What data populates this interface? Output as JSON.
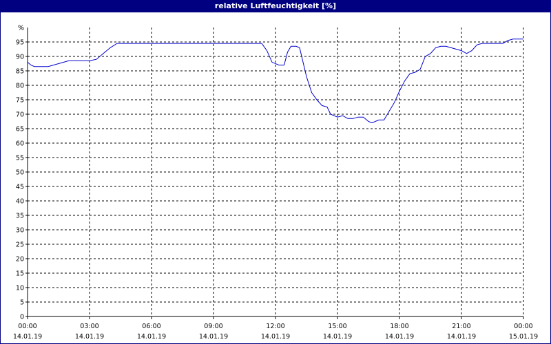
{
  "window": {
    "title": "relative Luftfeuchtigkeit [%]"
  },
  "chart_data": {
    "type": "line",
    "title": "relative Luftfeuchtigkeit [%]",
    "ylabel": "%",
    "ylim": [
      0,
      100
    ],
    "yticks": [
      0,
      5,
      10,
      15,
      20,
      25,
      30,
      35,
      40,
      45,
      50,
      55,
      60,
      65,
      70,
      75,
      80,
      85,
      90,
      95
    ],
    "xlim": [
      "14.01.19 00:00",
      "15.01.19 00:00"
    ],
    "xticks": [
      {
        "time": "00:00",
        "date": "14.01.19"
      },
      {
        "time": "03:00",
        "date": "14.01.19"
      },
      {
        "time": "06:00",
        "date": "14.01.19"
      },
      {
        "time": "09:00",
        "date": "14.01.19"
      },
      {
        "time": "12:00",
        "date": "14.01.19"
      },
      {
        "time": "15:00",
        "date": "14.01.19"
      },
      {
        "time": "18:00",
        "date": "14.01.19"
      },
      {
        "time": "21:00",
        "date": "14.01.19"
      },
      {
        "time": "00:00",
        "date": "15.01.19"
      }
    ],
    "grid": true,
    "line_color": "#0000cc",
    "series": [
      {
        "name": "",
        "points": [
          [
            "14.01.19 00:00",
            88
          ],
          [
            "14.01.19 00:10",
            87
          ],
          [
            "14.01.19 00:20",
            86.5
          ],
          [
            "14.01.19 00:40",
            86.5
          ],
          [
            "14.01.19 01:00",
            86.5
          ],
          [
            "14.01.19 01:15",
            87
          ],
          [
            "14.01.19 01:30",
            87.5
          ],
          [
            "14.01.19 01:45",
            88
          ],
          [
            "14.01.19 02:00",
            88.5
          ],
          [
            "14.01.19 02:30",
            88.5
          ],
          [
            "14.01.19 03:00",
            88.5
          ],
          [
            "14.01.19 03:20",
            89
          ],
          [
            "14.01.19 03:40",
            91
          ],
          [
            "14.01.19 04:00",
            93
          ],
          [
            "14.01.19 04:20",
            94.5
          ],
          [
            "14.01.19 05:00",
            94.5
          ],
          [
            "14.01.19 06:00",
            94.5
          ],
          [
            "14.01.19 08:00",
            94.5
          ],
          [
            "14.01.19 10:00",
            94.5
          ],
          [
            "14.01.19 11:20",
            94.5
          ],
          [
            "14.01.19 11:35",
            92
          ],
          [
            "14.01.19 11:50",
            88
          ],
          [
            "14.01.19 12:10",
            87
          ],
          [
            "14.01.19 12:25",
            87
          ],
          [
            "14.01.19 12:35",
            91.5
          ],
          [
            "14.01.19 12:45",
            93.5
          ],
          [
            "14.01.19 13:00",
            93.5
          ],
          [
            "14.01.19 13:10",
            93
          ],
          [
            "14.01.19 13:20",
            88
          ],
          [
            "14.01.19 13:30",
            83
          ],
          [
            "14.01.19 13:45",
            77.5
          ],
          [
            "14.01.19 14:00",
            75
          ],
          [
            "14.01.19 14:15",
            73
          ],
          [
            "14.01.19 14:30",
            72.5
          ],
          [
            "14.01.19 14:40",
            70
          ],
          [
            "14.01.19 15:00",
            69
          ],
          [
            "14.01.19 15:15",
            69.5
          ],
          [
            "14.01.19 15:30",
            68.5
          ],
          [
            "14.01.19 15:45",
            68.5
          ],
          [
            "14.01.19 16:00",
            69
          ],
          [
            "14.01.19 16:15",
            69
          ],
          [
            "14.01.19 16:30",
            67.5
          ],
          [
            "14.01.19 16:40",
            67
          ],
          [
            "14.01.19 17:00",
            68
          ],
          [
            "14.01.19 17:15",
            68
          ],
          [
            "14.01.19 17:30",
            71
          ],
          [
            "14.01.19 17:45",
            74
          ],
          [
            "14.01.19 18:00",
            78
          ],
          [
            "14.01.19 18:15",
            81.5
          ],
          [
            "14.01.19 18:30",
            84
          ],
          [
            "14.01.19 18:45",
            84.5
          ],
          [
            "14.01.19 19:00",
            85.5
          ],
          [
            "14.01.19 19:15",
            90
          ],
          [
            "14.01.19 19:30",
            91
          ],
          [
            "14.01.19 19:45",
            93
          ],
          [
            "14.01.19 20:00",
            93.5
          ],
          [
            "14.01.19 20:15",
            93.5
          ],
          [
            "14.01.19 20:30",
            93
          ],
          [
            "14.01.19 20:45",
            92.5
          ],
          [
            "14.01.19 21:00",
            92
          ],
          [
            "14.01.19 21:15",
            91
          ],
          [
            "14.01.19 21:30",
            92
          ],
          [
            "14.01.19 21:45",
            94
          ],
          [
            "14.01.19 22:00",
            94.5
          ],
          [
            "14.01.19 22:30",
            94.5
          ],
          [
            "14.01.19 23:00",
            94.5
          ],
          [
            "14.01.19 23:15",
            95.5
          ],
          [
            "14.01.19 23:30",
            96
          ],
          [
            "15.01.19 00:00",
            96
          ]
        ]
      }
    ]
  }
}
